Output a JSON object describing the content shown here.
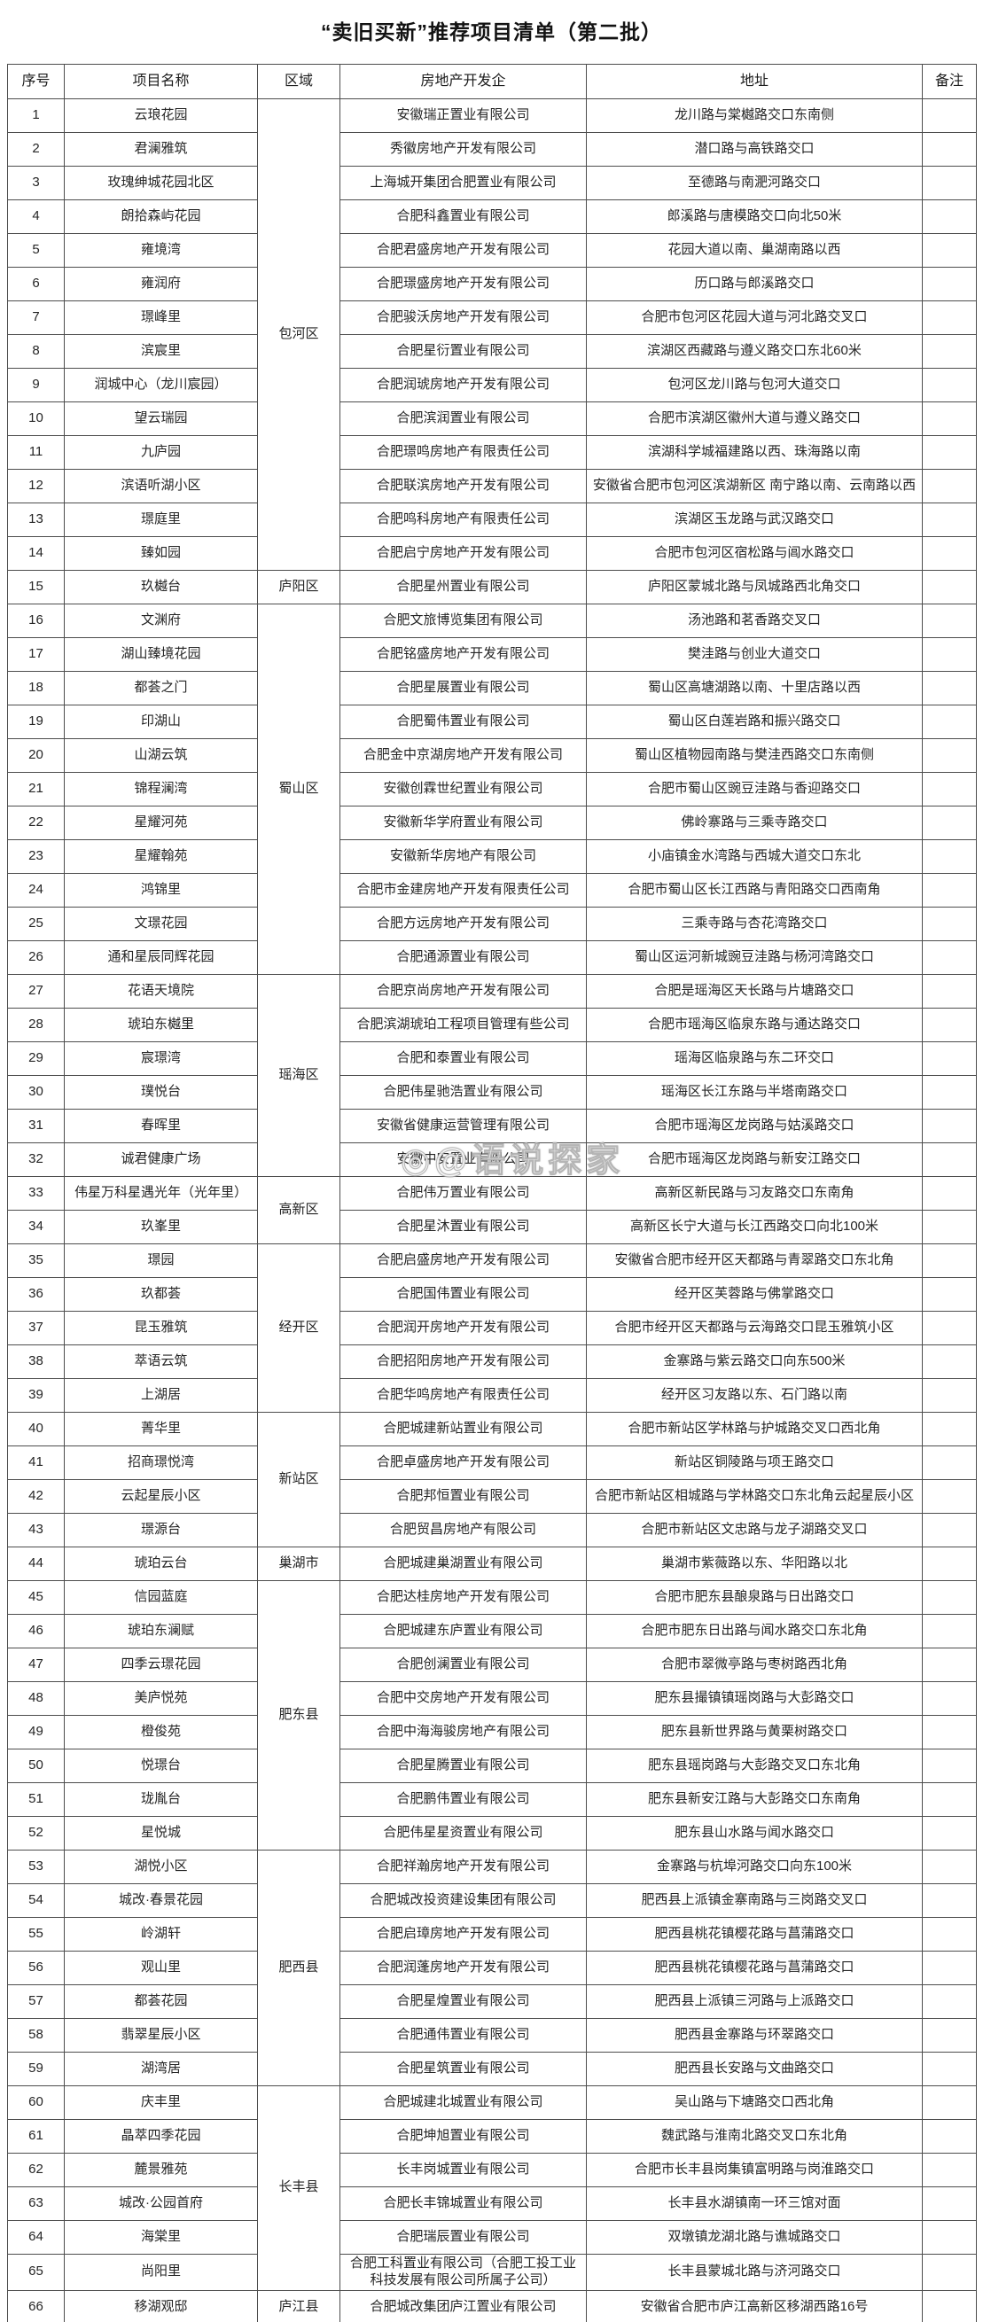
{
  "title": "“卖旧买新”推荐项目清单（第二批）",
  "watermark": "◎@语说探家",
  "table": {
    "headers": [
      "序号",
      "项目名称",
      "区域",
      "房地产开发企",
      "地址",
      "备注"
    ],
    "regions": [
      {
        "label": "包河区",
        "span": 14
      },
      {
        "label": "庐阳区",
        "span": 1
      },
      {
        "label": "蜀山区",
        "span": 11
      },
      {
        "label": "瑶海区",
        "span": 6
      },
      {
        "label": "高新区",
        "span": 2
      },
      {
        "label": "经开区",
        "span": 5
      },
      {
        "label": "新站区",
        "span": 4
      },
      {
        "label": "巢湖市",
        "span": 1
      },
      {
        "label": "肥东县",
        "span": 8
      },
      {
        "label": "肥西县",
        "span": 7
      },
      {
        "label": "长丰县",
        "span": 6
      },
      {
        "label": "庐江县",
        "span": 1
      }
    ],
    "rows": [
      {
        "no": "1",
        "name": "云琅花园",
        "developer": "安徽瑞正置业有限公司",
        "address": "龙川路与棠樾路交口东南侧",
        "note": ""
      },
      {
        "no": "2",
        "name": "君澜雅筑",
        "developer": "秀徽房地产开发有限公司",
        "address": "潜口路与高铁路交口",
        "note": ""
      },
      {
        "no": "3",
        "name": "玫瑰绅城花园北区",
        "developer": "上海城开集团合肥置业有限公司",
        "address": "至德路与南淝河路交口",
        "note": ""
      },
      {
        "no": "4",
        "name": "朗拾森屿花园",
        "developer": "合肥科鑫置业有限公司",
        "address": "郎溪路与唐模路交口向北50米",
        "note": ""
      },
      {
        "no": "5",
        "name": "雍境湾",
        "developer": "合肥君盛房地产开发有限公司",
        "address": "花园大道以南、巢湖南路以西",
        "note": ""
      },
      {
        "no": "6",
        "name": "雍润府",
        "developer": "合肥璟盛房地产开发有限公司",
        "address": "历口路与郎溪路交口",
        "note": ""
      },
      {
        "no": "7",
        "name": "璟峰里",
        "developer": "合肥骏沃房地产开发有限公司",
        "address": "合肥市包河区花园大道与河北路交叉口",
        "note": ""
      },
      {
        "no": "8",
        "name": "滨宸里",
        "developer": "合肥星衍置业有限公司",
        "address": "滨湖区西藏路与遵义路交口东北60米",
        "note": ""
      },
      {
        "no": "9",
        "name": "润城中心（龙川宸园）",
        "developer": "合肥润琥房地产开发有限公司",
        "address": "包河区龙川路与包河大道交口",
        "note": ""
      },
      {
        "no": "10",
        "name": "望云瑞园",
        "developer": "合肥滨润置业有限公司",
        "address": "合肥市滨湖区徽州大道与遵义路交口",
        "note": ""
      },
      {
        "no": "11",
        "name": "九庐园",
        "developer": "合肥璟鸣房地产有限责任公司",
        "address": "滨湖科学城福建路以西、珠海路以南",
        "note": ""
      },
      {
        "no": "12",
        "name": "滨语听湖小区",
        "developer": "合肥联滨房地产开发有限公司",
        "address": "安徽省合肥市包河区滨湖新区 南宁路以南、云南路以西",
        "note": ""
      },
      {
        "no": "13",
        "name": "璟庭里",
        "developer": "合肥鸣科房地产有限责任公司",
        "address": "滨湖区玉龙路与武汉路交口",
        "note": ""
      },
      {
        "no": "14",
        "name": "臻如园",
        "developer": "合肥启宁房地产开发有限公司",
        "address": "合肥市包河区宿松路与阊水路交口",
        "note": ""
      },
      {
        "no": "15",
        "name": "玖樾台",
        "developer": "合肥星州置业有限公司",
        "address": "庐阳区蒙城北路与凤城路西北角交口",
        "note": ""
      },
      {
        "no": "16",
        "name": "文渊府",
        "developer": "合肥文旅博览集团有限公司",
        "address": "汤池路和茗香路交叉口",
        "note": ""
      },
      {
        "no": "17",
        "name": "湖山臻境花园",
        "developer": "合肥铭盛房地产开发有限公司",
        "address": "樊洼路与创业大道交口",
        "note": ""
      },
      {
        "no": "18",
        "name": "都荟之门",
        "developer": "合肥星展置业有限公司",
        "address": "蜀山区高塘湖路以南、十里店路以西",
        "note": ""
      },
      {
        "no": "19",
        "name": "印湖山",
        "developer": "合肥蜀伟置业有限公司",
        "address": "蜀山区白莲岩路和振兴路交口",
        "note": ""
      },
      {
        "no": "20",
        "name": "山湖云筑",
        "developer": "合肥金中京湖房地产开发有限公司",
        "address": "蜀山区植物园南路与樊洼西路交口东南侧",
        "note": ""
      },
      {
        "no": "21",
        "name": "锦程澜湾",
        "developer": "安徽创霖世纪置业有限公司",
        "address": "合肥市蜀山区豌豆洼路与香迎路交口",
        "note": ""
      },
      {
        "no": "22",
        "name": "星耀河苑",
        "developer": "安徽新华学府置业有限公司",
        "address": "佛岭寨路与三乘寺路交口",
        "note": ""
      },
      {
        "no": "23",
        "name": "星耀翰苑",
        "developer": "安徽新华房地产有限公司",
        "address": "小庙镇金水湾路与西城大道交口东北",
        "note": ""
      },
      {
        "no": "24",
        "name": "鸿锦里",
        "developer": "合肥市金建房地产开发有限责任公司",
        "address": "合肥市蜀山区长江西路与青阳路交口西南角",
        "note": ""
      },
      {
        "no": "25",
        "name": "文璟花园",
        "developer": "合肥方远房地产开发有限公司",
        "address": "三乘寺路与杏花湾路交口",
        "note": ""
      },
      {
        "no": "26",
        "name": "通和星辰同辉花园",
        "developer": "合肥通源置业有限公司",
        "address": "蜀山区运河新城豌豆洼路与杨河湾路交口",
        "note": ""
      },
      {
        "no": "27",
        "name": "花语天境院",
        "developer": "合肥京尚房地产开发有限公司",
        "address": "合肥是瑶海区天长路与片塘路交口",
        "note": ""
      },
      {
        "no": "28",
        "name": "琥珀东樾里",
        "developer": "合肥滨湖琥珀工程项目管理有些公司",
        "address": "合肥市瑶海区临泉东路与通达路交口",
        "note": ""
      },
      {
        "no": "29",
        "name": "宸璟湾",
        "developer": "合肥和泰置业有限公司",
        "address": "瑶海区临泉路与东二环交口",
        "note": ""
      },
      {
        "no": "30",
        "name": "璞悦台",
        "developer": "合肥伟星驰浩置业有限公司",
        "address": "瑶海区长江东路与半塔南路交口",
        "note": ""
      },
      {
        "no": "31",
        "name": "春晖里",
        "developer": "安徽省健康运营管理有限公司",
        "address": "合肥市瑶海区龙岗路与姑溪路交口",
        "note": ""
      },
      {
        "no": "32",
        "name": "诚君健康广场",
        "developer": "安徽中安置业有限公司",
        "address": "合肥市瑶海区龙岗路与新安江路交口",
        "note": ""
      },
      {
        "no": "33",
        "name": "伟星万科星遇光年（光年里）",
        "developer": "合肥伟万置业有限公司",
        "address": "高新区新民路与习友路交口东南角",
        "note": ""
      },
      {
        "no": "34",
        "name": "玖峯里",
        "developer": "合肥星沐置业有限公司",
        "address": "高新区长宁大道与长江西路交口向北100米",
        "note": ""
      },
      {
        "no": "35",
        "name": "璟园",
        "developer": "合肥启盛房地产开发有限公司",
        "address": "安徽省合肥市经开区天都路与青翠路交口东北角",
        "note": ""
      },
      {
        "no": "36",
        "name": "玖都荟",
        "developer": "合肥国伟置业有限公司",
        "address": "经开区芙蓉路与佛掌路交口",
        "note": ""
      },
      {
        "no": "37",
        "name": "昆玉雅筑",
        "developer": "合肥润开房地产开发有限公司",
        "address": "合肥市经开区天都路与云海路交口昆玉雅筑小区",
        "note": ""
      },
      {
        "no": "38",
        "name": "萃语云筑",
        "developer": "合肥招阳房地产开发有限公司",
        "address": "金寨路与紫云路交口向东500米",
        "note": ""
      },
      {
        "no": "39",
        "name": "上湖居",
        "developer": "合肥华鸣房地产有限责任公司",
        "address": "经开区习友路以东、石门路以南",
        "note": ""
      },
      {
        "no": "40",
        "name": "菁华里",
        "developer": "合肥城建新站置业有限公司",
        "address": "合肥市新站区学林路与护城路交叉口西北角",
        "note": ""
      },
      {
        "no": "41",
        "name": "招商璟悦湾",
        "developer": "合肥卓盛房地产开发有限公司",
        "address": "新站区铜陵路与项王路交口",
        "note": ""
      },
      {
        "no": "42",
        "name": "云起星辰小区",
        "developer": "合肥邦恒置业有限公司",
        "address": "合肥市新站区相城路与学林路交口东北角云起星辰小区",
        "note": ""
      },
      {
        "no": "43",
        "name": "璟源台",
        "developer": "合肥贸昌房地产有限公司",
        "address": "合肥市新站区文忠路与龙子湖路交叉口",
        "note": ""
      },
      {
        "no": "44",
        "name": "琥珀云台",
        "developer": "合肥城建巢湖置业有限公司",
        "address": "巢湖市紫薇路以东、华阳路以北",
        "note": ""
      },
      {
        "no": "45",
        "name": "信园蓝庭",
        "developer": "合肥达桂房地产开发有限公司",
        "address": "合肥市肥东县酿泉路与日出路交口",
        "note": ""
      },
      {
        "no": "46",
        "name": "琥珀东澜赋",
        "developer": "合肥城建东庐置业有限公司",
        "address": "合肥市肥东日出路与闻水路交口东北角",
        "note": ""
      },
      {
        "no": "47",
        "name": "四季云璟花园",
        "developer": "合肥创澜置业有限公司",
        "address": "合肥市翠微亭路与枣树路西北角",
        "note": ""
      },
      {
        "no": "48",
        "name": "美庐悦苑",
        "developer": "合肥中交房地产开发有限公司",
        "address": "肥东县撮镇镇瑶岗路与大彭路交口",
        "note": ""
      },
      {
        "no": "49",
        "name": "橙俊苑",
        "developer": "合肥中海海骏房地产有限公司",
        "address": "肥东县新世界路与黄栗树路交口",
        "note": ""
      },
      {
        "no": "50",
        "name": "悦璟台",
        "developer": "合肥星腾置业有限公司",
        "address": "肥东县瑶岗路与大彭路交叉口东北角",
        "note": ""
      },
      {
        "no": "51",
        "name": "珑胤台",
        "developer": "合肥鹏伟置业有限公司",
        "address": "肥东县新安江路与大彭路交口东南角",
        "note": ""
      },
      {
        "no": "52",
        "name": "星悦城",
        "developer": "合肥伟星星资置业有限公司",
        "address": "肥东县山水路与闻水路交口",
        "note": ""
      },
      {
        "no": "53",
        "name": "湖悦小区",
        "developer": "合肥祥瀚房地产开发有限公司",
        "address": "金寨路与杭埠河路交口向东100米",
        "note": ""
      },
      {
        "no": "54",
        "name": "城改·春景花园",
        "developer": "合肥城改投资建设集团有限公司",
        "address": "肥西县上派镇金寨南路与三岗路交叉口",
        "note": ""
      },
      {
        "no": "55",
        "name": "岭湖轩",
        "developer": "合肥启璋房地产开发有限公司",
        "address": "肥西县桃花镇樱花路与菖蒲路交口",
        "note": ""
      },
      {
        "no": "56",
        "name": "观山里",
        "developer": "合肥润蓬房地产开发有限公司",
        "address": "肥西县桃花镇樱花路与菖蒲路交口",
        "note": ""
      },
      {
        "no": "57",
        "name": "都荟花园",
        "developer": "合肥星煌置业有限公司",
        "address": "肥西县上派镇三河路与上派路交口",
        "note": ""
      },
      {
        "no": "58",
        "name": "翡翠星辰小区",
        "developer": "合肥通伟置业有限公司",
        "address": "肥西县金寨路与环翠路交口",
        "note": ""
      },
      {
        "no": "59",
        "name": "湖湾居",
        "developer": "合肥星筑置业有限公司",
        "address": "肥西县长安路与文曲路交口",
        "note": ""
      },
      {
        "no": "60",
        "name": "庆丰里",
        "developer": "合肥城建北城置业有限公司",
        "address": "吴山路与下塘路交口西北角",
        "note": ""
      },
      {
        "no": "61",
        "name": "晶萃四季花园",
        "developer": "合肥坤旭置业有限公司",
        "address": "魏武路与淮南北路交叉口东北角",
        "note": ""
      },
      {
        "no": "62",
        "name": "麓景雅苑",
        "developer": "长丰岗城置业有限公司",
        "address": "合肥市长丰县岗集镇富明路与岗淮路交口",
        "note": ""
      },
      {
        "no": "63",
        "name": "城改·公园首府",
        "developer": "合肥长丰锦城置业有限公司",
        "address": "长丰县水湖镇南一环三馆对面",
        "note": ""
      },
      {
        "no": "64",
        "name": "海棠里",
        "developer": "合肥瑞辰置业有限公司",
        "address": "双墩镇龙湖北路与谯城路交口",
        "note": ""
      },
      {
        "no": "65",
        "name": "尚阳里",
        "developer": "合肥工科置业有限公司（合肥工投工业科技发展有限公司所属子公司）",
        "address": "长丰县蒙城北路与济河路交口",
        "note": ""
      },
      {
        "no": "66",
        "name": "移湖观邸",
        "developer": "合肥城改集团庐江置业有限公司",
        "address": "安徽省合肥市庐江高新区移湖西路16号",
        "note": ""
      }
    ]
  }
}
